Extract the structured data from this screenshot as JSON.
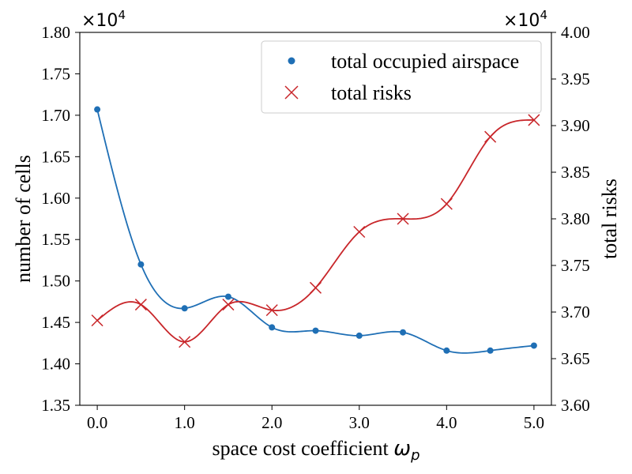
{
  "chart_data": {
    "type": "line",
    "x": [
      0.0,
      0.5,
      1.0,
      1.5,
      2.0,
      2.5,
      3.0,
      3.5,
      4.0,
      4.5,
      5.0
    ],
    "xticks": [
      "0.0",
      "1.0",
      "2.0",
      "3.0",
      "4.0",
      "5.0"
    ],
    "xlim": [
      -0.2,
      5.2
    ],
    "xlabel_main": "space cost coefficient ",
    "xlabel_symbol": "ω",
    "xlabel_subscript": "p",
    "left_axis": {
      "label": "number of cells",
      "multiplier_base": "×10",
      "multiplier_exp": "4",
      "ylim": [
        1.35,
        1.8
      ],
      "ticks": [
        "1.35",
        "1.40",
        "1.45",
        "1.50",
        "1.55",
        "1.60",
        "1.65",
        "1.70",
        "1.75",
        "1.80"
      ]
    },
    "right_axis": {
      "label": "total risks",
      "multiplier_base": "×10",
      "multiplier_exp": "4",
      "ylim": [
        3.6,
        4.0
      ],
      "ticks": [
        "3.60",
        "3.65",
        "3.70",
        "3.75",
        "3.80",
        "3.85",
        "3.90",
        "3.95",
        "4.00"
      ]
    },
    "series": [
      {
        "name": "total occupied airspace",
        "axis": "left",
        "marker": "circle",
        "color": "#1f6fb5",
        "values": [
          1.707,
          1.52,
          1.467,
          1.481,
          1.444,
          1.44,
          1.434,
          1.438,
          1.416,
          1.416,
          1.422
        ]
      },
      {
        "name": "total risks",
        "axis": "right",
        "marker": "x",
        "color": "#c8262a",
        "values": [
          3.691,
          3.708,
          3.668,
          3.708,
          3.702,
          3.726,
          3.786,
          3.8,
          3.816,
          3.888,
          3.906
        ]
      }
    ]
  }
}
